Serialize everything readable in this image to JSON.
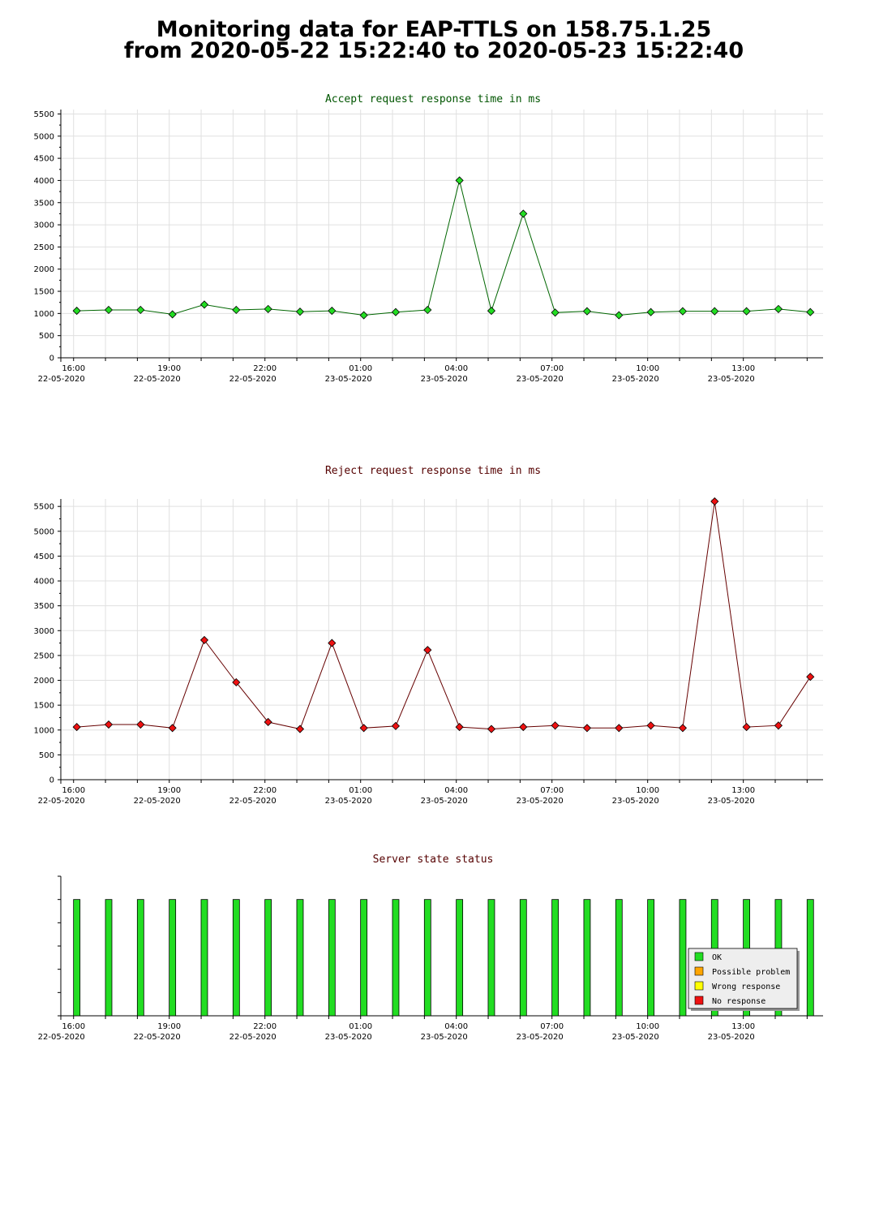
{
  "page": {
    "title_line1": "Monitoring data for EAP-TTLS on 158.75.1.25",
    "title_line2": "from 2020-05-22 15:22:40 to 2020-05-23 15:22:40"
  },
  "colors": {
    "accept_line": "#006600",
    "accept_marker": "#22dd22",
    "reject_line": "#660000",
    "reject_marker": "#ee1111",
    "accept_title": "#005500",
    "reject_title": "#550000",
    "grid": "#e0e0e0",
    "ok": "#22dd22",
    "possible_problem": "#ffa500",
    "wrong_response": "#ffff00",
    "no_response": "#ee1111"
  },
  "x_axis": {
    "ticks": [
      {
        "time": "16:00",
        "date": "22-05-2020",
        "hour": 16
      },
      {
        "time": "19:00",
        "date": "22-05-2020",
        "hour": 19
      },
      {
        "time": "22:00",
        "date": "22-05-2020",
        "hour": 22
      },
      {
        "time": "01:00",
        "date": "23-05-2020",
        "hour": 25
      },
      {
        "time": "04:00",
        "date": "23-05-2020",
        "hour": 28
      },
      {
        "time": "07:00",
        "date": "23-05-2020",
        "hour": 31
      },
      {
        "time": "10:00",
        "date": "23-05-2020",
        "hour": 34
      },
      {
        "time": "13:00",
        "date": "23-05-2020",
        "hour": 37
      }
    ]
  },
  "chart_data": [
    {
      "type": "line",
      "title": "Accept request response time in ms",
      "ylim": [
        0,
        5600
      ],
      "yticks": [
        0,
        500,
        1000,
        1500,
        2000,
        2500,
        3000,
        3500,
        4000,
        4500,
        5000,
        5500
      ],
      "grid": true,
      "x_hours": [
        16.1,
        17.1,
        18.1,
        19.1,
        20.1,
        21.1,
        22.1,
        23.1,
        24.1,
        25.1,
        26.1,
        27.1,
        28.1,
        29.1,
        30.1,
        31.1,
        32.1,
        33.1,
        34.1,
        35.1,
        36.1,
        37.1,
        38.1,
        39.1
      ],
      "values": [
        1060,
        1080,
        1080,
        980,
        1200,
        1080,
        1100,
        1040,
        1060,
        960,
        1030,
        1080,
        4000,
        1060,
        3250,
        1020,
        1050,
        960,
        1030,
        1050,
        1050,
        1050,
        1100,
        1030
      ]
    },
    {
      "type": "line",
      "title": "Reject request response time in ms",
      "ylim": [
        0,
        5650
      ],
      "yticks": [
        0,
        500,
        1000,
        1500,
        2000,
        2500,
        3000,
        3500,
        4000,
        4500,
        5000,
        5500
      ],
      "grid": true,
      "x_hours": [
        16.1,
        17.1,
        18.1,
        19.1,
        20.1,
        21.1,
        22.1,
        23.1,
        24.1,
        25.1,
        26.1,
        27.1,
        28.1,
        29.1,
        30.1,
        31.1,
        32.1,
        33.1,
        34.1,
        35.1,
        36.1,
        37.1,
        38.1,
        39.1
      ],
      "values": [
        1060,
        1110,
        1110,
        1040,
        2810,
        1960,
        1160,
        1020,
        2750,
        1040,
        1080,
        2610,
        1060,
        1020,
        1060,
        1090,
        1040,
        1040,
        1090,
        1040,
        5600,
        1060,
        1090,
        2070
      ]
    },
    {
      "type": "bar",
      "title": "Server state status",
      "x_hours": [
        16.1,
        17.1,
        18.1,
        19.1,
        20.1,
        21.1,
        22.1,
        23.1,
        24.1,
        25.1,
        26.1,
        27.1,
        28.1,
        29.1,
        30.1,
        31.1,
        32.1,
        33.1,
        34.1,
        35.1,
        36.1,
        37.1,
        38.1,
        39.1
      ],
      "values": [
        1,
        1,
        1,
        1,
        1,
        1,
        1,
        1,
        1,
        1,
        1,
        1,
        1,
        1,
        1,
        1,
        1,
        1,
        1,
        1,
        1,
        1,
        1,
        1
      ],
      "ylim": [
        0,
        1.2
      ],
      "legend": [
        "OK",
        "Possible problem",
        "Wrong response",
        "No response"
      ],
      "legend_position": "right"
    }
  ]
}
